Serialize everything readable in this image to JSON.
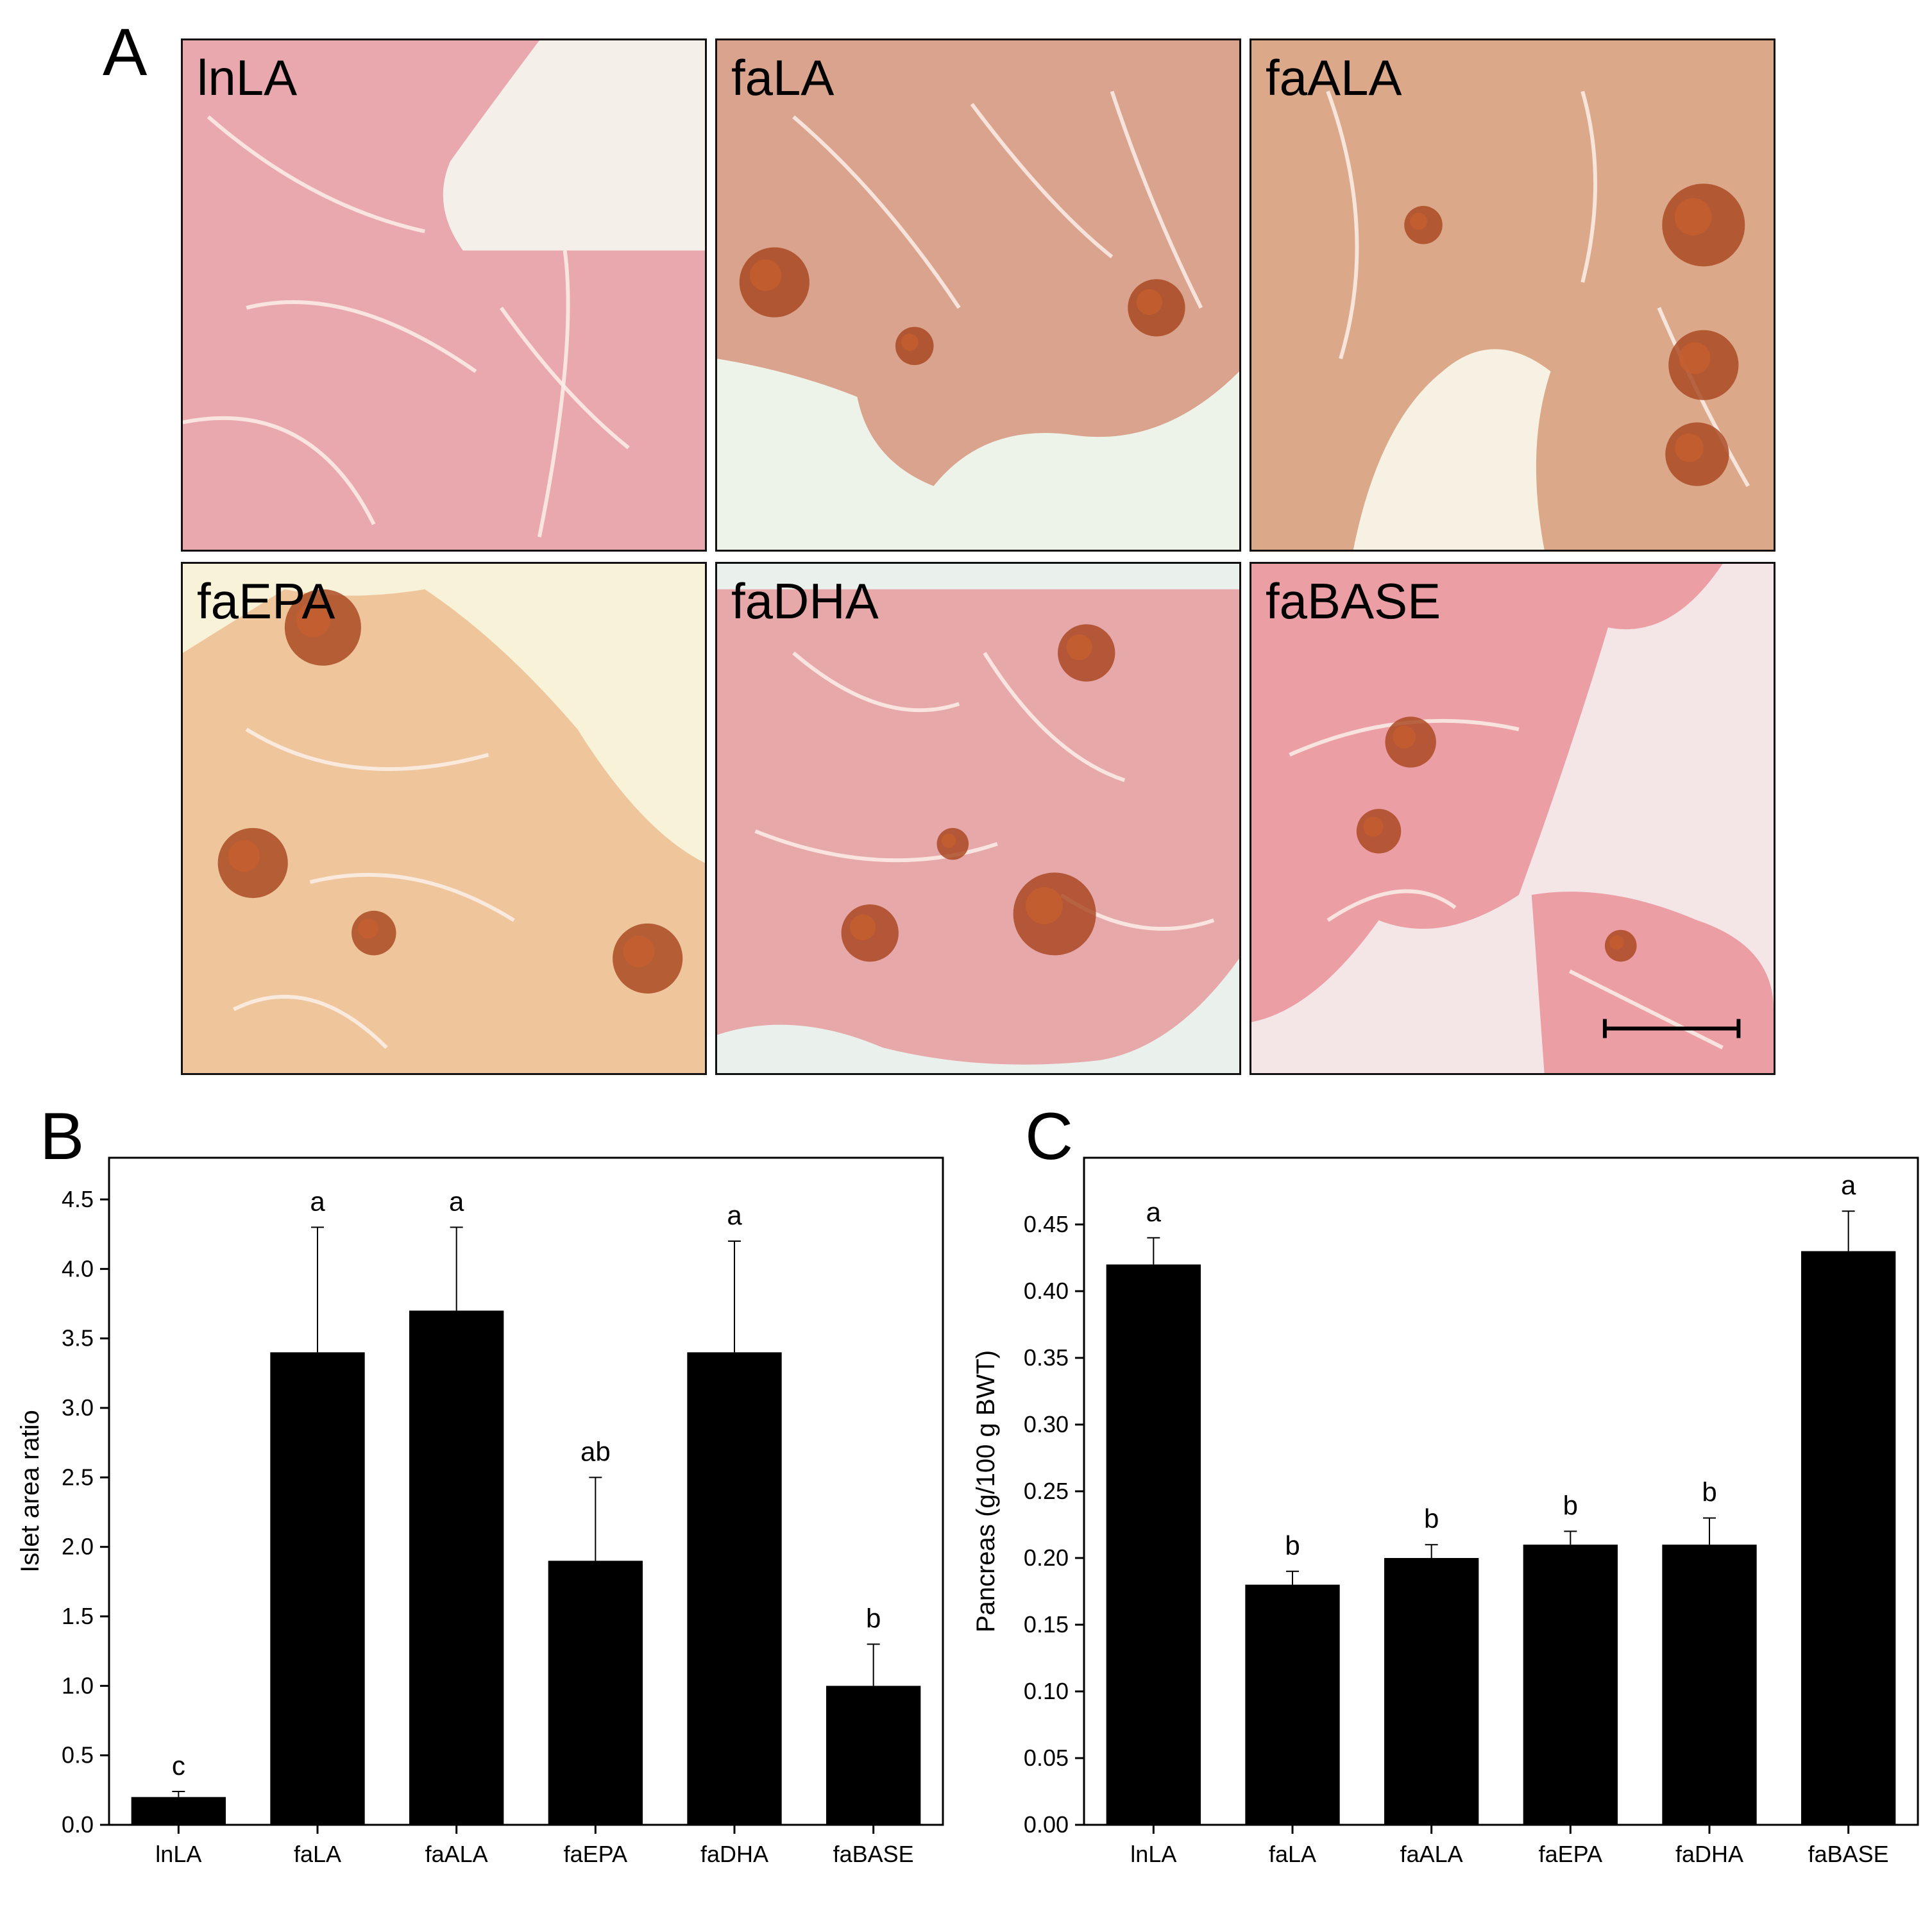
{
  "panels": {
    "a": "A",
    "b": "B",
    "c": "C"
  },
  "micrographs": [
    {
      "label": "lnLA",
      "tone": "#e8a8ae",
      "islets": []
    },
    {
      "label": "faLA",
      "tone": "#d9a38d",
      "islets": [
        "m1",
        "m2",
        "m3"
      ]
    },
    {
      "label": "faALA",
      "tone": "#dba98a",
      "islets": [
        "m1",
        "m2",
        "m3",
        "m4"
      ]
    },
    {
      "label": "faEPA",
      "tone": "#efc59c",
      "islets": [
        "m1",
        "m2",
        "m3",
        "m4"
      ]
    },
    {
      "label": "faDHA",
      "tone": "#e7a8aa",
      "islets": [
        "m1",
        "m2",
        "m3"
      ]
    },
    {
      "label": "faBASE",
      "tone": "#ec9ea5",
      "islets": [
        "m1",
        "m2"
      ]
    }
  ],
  "colors": {
    "bar": "#000000",
    "islet": "#a8461e",
    "background_light": "#f6f2e4"
  },
  "chart_data": [
    {
      "type": "bar",
      "panel": "B",
      "categories": [
        "lnLA",
        "faLA",
        "faALA",
        "faEPA",
        "faDHA",
        "faBASE"
      ],
      "values": [
        0.2,
        3.4,
        3.7,
        1.9,
        3.4,
        1.0
      ],
      "errors": [
        0.04,
        0.9,
        0.6,
        0.6,
        0.8,
        0.3
      ],
      "significance": [
        "c",
        "a",
        "a",
        "ab",
        "a",
        "b"
      ],
      "xlabel": "",
      "ylabel": "Islet area ratio",
      "ylim": [
        0,
        4.8
      ],
      "yticks": [
        "0.0",
        "0.5",
        "1.0",
        "1.5",
        "2.0",
        "2.5",
        "3.0",
        "3.5",
        "4.0",
        "4.5"
      ],
      "grid": false,
      "legend": "none"
    },
    {
      "type": "bar",
      "panel": "C",
      "categories": [
        "lnLA",
        "faLA",
        "faALA",
        "faEPA",
        "faDHA",
        "faBASE"
      ],
      "values": [
        0.42,
        0.18,
        0.2,
        0.21,
        0.21,
        0.43
      ],
      "errors": [
        0.02,
        0.01,
        0.01,
        0.01,
        0.02,
        0.03
      ],
      "significance": [
        "a",
        "b",
        "b",
        "b",
        "b",
        "a"
      ],
      "xlabel": "",
      "ylabel": "Pancreas (g/100 g BWT)",
      "ylim": [
        0,
        0.5
      ],
      "yticks": [
        "0.00",
        "0.05",
        "0.10",
        "0.15",
        "0.20",
        "0.25",
        "0.30",
        "0.35",
        "0.40",
        "0.45"
      ],
      "grid": false,
      "legend": "none"
    }
  ]
}
